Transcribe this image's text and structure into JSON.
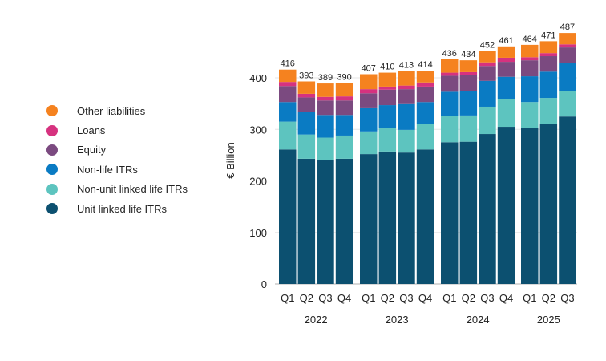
{
  "chart_data": {
    "type": "bar",
    "stacked": true,
    "ylabel": "€ Billion",
    "ylim": [
      0,
      500
    ],
    "yticks": [
      "0",
      "100",
      "200",
      "300",
      "400"
    ],
    "grid": true,
    "legend_position": "left",
    "groups": [
      {
        "year": "2022",
        "quarters": [
          "Q1",
          "Q2",
          "Q3",
          "Q4"
        ]
      },
      {
        "year": "2023",
        "quarters": [
          "Q1",
          "Q2",
          "Q3",
          "Q4"
        ]
      },
      {
        "year": "2024",
        "quarters": [
          "Q1",
          "Q2",
          "Q3",
          "Q4"
        ]
      },
      {
        "year": "2025",
        "quarters": [
          "Q1",
          "Q2",
          "Q3"
        ]
      }
    ],
    "totals": [
      416,
      393,
      389,
      390,
      407,
      410,
      413,
      414,
      436,
      434,
      452,
      461,
      464,
      471,
      487
    ],
    "series": [
      {
        "name": "Unit linked life ITRs",
        "color": "#0c5070",
        "values": [
          261,
          243,
          240,
          243,
          252,
          257,
          255,
          261,
          275,
          276,
          291,
          305,
          302,
          311,
          325
        ]
      },
      {
        "name": "Non-unit linked life ITRs",
        "color": "#5dc4bf",
        "values": [
          54,
          47,
          44,
          45,
          44,
          45,
          44,
          50,
          51,
          51,
          53,
          53,
          51,
          50,
          50
        ]
      },
      {
        "name": "Non-life ITRs",
        "color": "#0a7bc3",
        "values": [
          38,
          44,
          44,
          40,
          45,
          45,
          50,
          42,
          47,
          47,
          50,
          44,
          50,
          51,
          53
        ]
      },
      {
        "name": "Equity",
        "color": "#7b4a80",
        "values": [
          31,
          28,
          28,
          28,
          29,
          30,
          29,
          30,
          31,
          31,
          29,
          29,
          31,
          30,
          31
        ]
      },
      {
        "name": "Loans",
        "color": "#d6327f",
        "values": [
          8,
          7,
          7,
          8,
          8,
          6,
          7,
          8,
          6,
          6,
          7,
          8,
          6,
          6,
          6
        ]
      },
      {
        "name": "Other liabilities",
        "color": "#f5821f",
        "values": [
          24,
          24,
          26,
          26,
          29,
          27,
          28,
          23,
          26,
          23,
          22,
          22,
          24,
          23,
          22
        ]
      }
    ]
  }
}
